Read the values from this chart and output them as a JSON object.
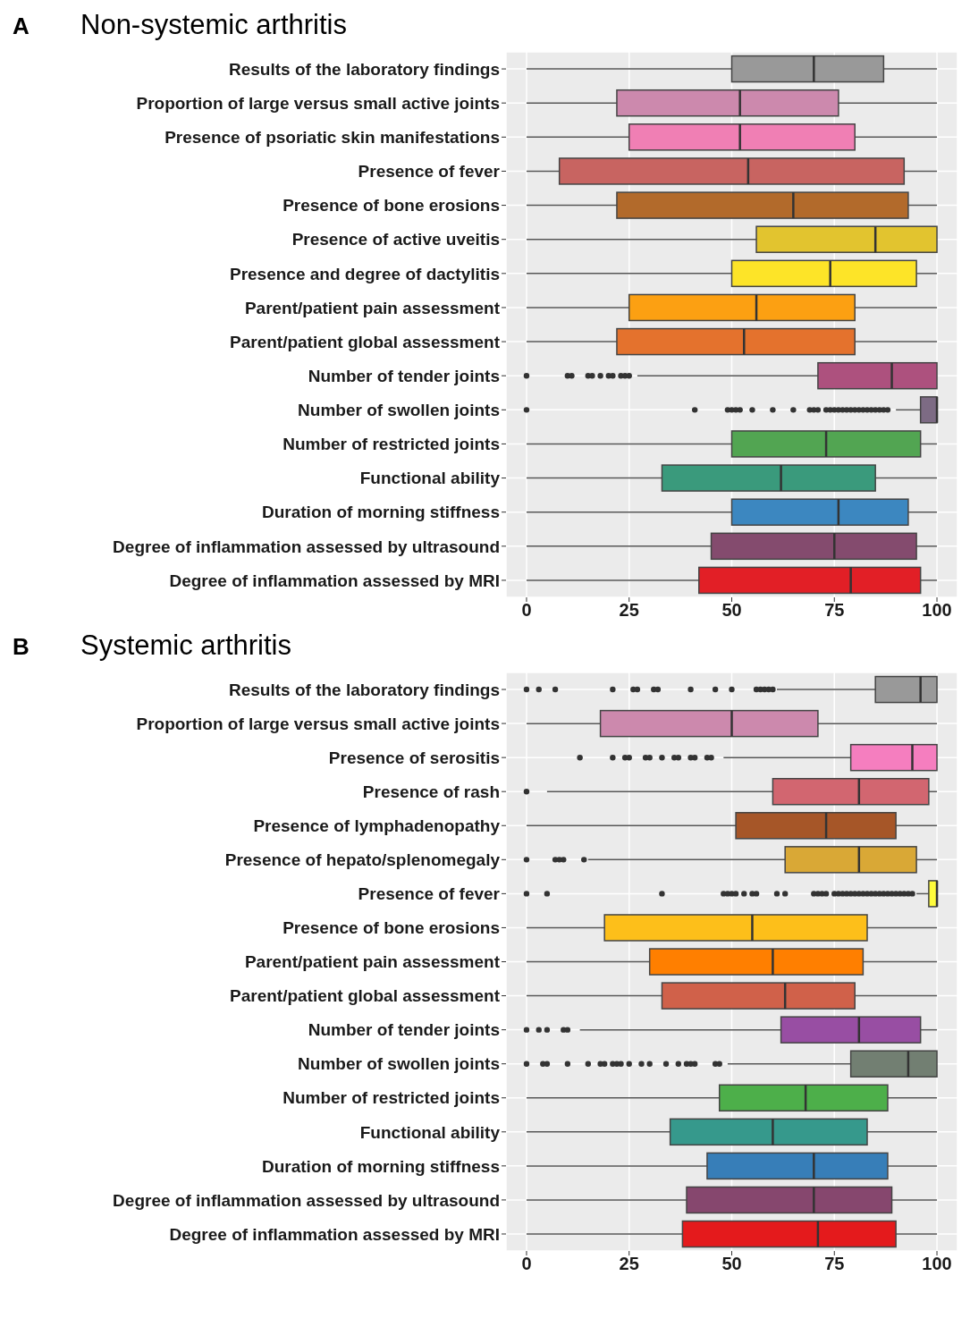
{
  "chart_data": [
    {
      "type": "box",
      "orientation": "horizontal",
      "title": "Non-systemic arthritis",
      "annotations": [
        "A"
      ],
      "grid": true,
      "xlim": [
        -5,
        105
      ],
      "xticks": [
        0,
        25,
        50,
        75,
        100
      ],
      "categories": [
        "Results of the laboratory findings",
        "Proportion of large versus small active joints",
        "Presence of psoriatic skin manifestations",
        "Presence of fever",
        "Presence of bone erosions",
        "Presence of active uveitis",
        "Presence and degree of dactylitis",
        "Parent/patient pain assessment",
        "Parent/patient global assessment",
        "Number of tender joints",
        "Number of swollen joints",
        "Number of restricted joints",
        "Functional ability",
        "Duration of morning stiffness",
        "Degree of inflammation assessed by ultrasound",
        "Degree of inflammation assessed by MRI"
      ],
      "colors": [
        "#999999",
        "#cc89ad",
        "#f07fb4",
        "#c86461",
        "#b26a2b",
        "#e2c42f",
        "#fde428",
        "#fca012",
        "#e4722d",
        "#ad517e",
        "#7d6b84",
        "#52a552",
        "#3a9a7c",
        "#3c87c0",
        "#844b6e",
        "#e21f26"
      ],
      "boxes": [
        {
          "low": 0,
          "q1": 50,
          "median": 70,
          "q3": 87,
          "high": 100
        },
        {
          "low": 0,
          "q1": 22,
          "median": 52,
          "q3": 76,
          "high": 100
        },
        {
          "low": 0,
          "q1": 25,
          "median": 52,
          "q3": 80,
          "high": 100
        },
        {
          "low": 0,
          "q1": 8,
          "median": 54,
          "q3": 92,
          "high": 100
        },
        {
          "low": 0,
          "q1": 22,
          "median": 65,
          "q3": 93,
          "high": 100
        },
        {
          "low": 0,
          "q1": 56,
          "median": 85,
          "q3": 100,
          "high": 100
        },
        {
          "low": 0,
          "q1": 50,
          "median": 74,
          "q3": 95,
          "high": 100
        },
        {
          "low": 0,
          "q1": 25,
          "median": 56,
          "q3": 80,
          "high": 100
        },
        {
          "low": 0,
          "q1": 22,
          "median": 53,
          "q3": 80,
          "high": 100
        },
        {
          "low": 27,
          "q1": 71,
          "median": 89,
          "q3": 100,
          "high": 100,
          "outliers": [
            0,
            10,
            11,
            15,
            16,
            18,
            20,
            21,
            23,
            24,
            25
          ]
        },
        {
          "low": 90,
          "q1": 96,
          "median": 100,
          "q3": 100,
          "high": 100,
          "outliers": [
            0,
            41,
            49,
            50,
            51,
            52,
            55,
            60,
            65,
            69,
            70,
            71,
            73,
            74,
            75,
            76,
            77,
            78,
            79,
            80,
            81,
            82,
            83,
            84,
            85,
            86,
            87,
            88
          ]
        },
        {
          "low": 0,
          "q1": 50,
          "median": 73,
          "q3": 96,
          "high": 100
        },
        {
          "low": 0,
          "q1": 33,
          "median": 62,
          "q3": 85,
          "high": 100
        },
        {
          "low": 0,
          "q1": 50,
          "median": 76,
          "q3": 93,
          "high": 100
        },
        {
          "low": 0,
          "q1": 45,
          "median": 75,
          "q3": 95,
          "high": 100
        },
        {
          "low": 0,
          "q1": 42,
          "median": 79,
          "q3": 96,
          "high": 100
        }
      ]
    },
    {
      "type": "box",
      "orientation": "horizontal",
      "title": "Systemic arthritis",
      "annotations": [
        "B"
      ],
      "grid": true,
      "xlim": [
        -5,
        105
      ],
      "xticks": [
        0,
        25,
        50,
        75,
        100
      ],
      "categories": [
        "Results of the laboratory findings",
        "Proportion of large versus small active joints",
        "Presence of serositis",
        "Presence of rash",
        "Presence of lymphadenopathy",
        "Presence of hepato/splenomegaly",
        "Presence of fever",
        "Presence of bone erosions",
        "Parent/patient pain assessment",
        "Parent/patient global assessment",
        "Number of tender joints",
        "Number of swollen joints",
        "Number of restricted joints",
        "Functional ability",
        "Duration of morning stiffness",
        "Degree of inflammation assessed by ultrasound",
        "Degree of inflammation assessed by MRI"
      ],
      "colors": [
        "#999999",
        "#cc89ad",
        "#f57ebf",
        "#d26670",
        "#a65628",
        "#d9a836",
        "#fffc3c",
        "#fdbf1a",
        "#ff7f00",
        "#d0614a",
        "#984ea3",
        "#727f72",
        "#4daf4a",
        "#36998c",
        "#377eb8",
        "#86476e",
        "#e41a1c"
      ],
      "boxes": [
        {
          "low": 61,
          "q1": 85,
          "median": 96,
          "q3": 100,
          "high": 100,
          "outliers": [
            0,
            3,
            7,
            21,
            26,
            27,
            31,
            32,
            40,
            46,
            50,
            56,
            57,
            58,
            59,
            60
          ]
        },
        {
          "low": 0,
          "q1": 18,
          "median": 50,
          "q3": 71,
          "high": 100
        },
        {
          "low": 48,
          "q1": 79,
          "median": 94,
          "q3": 100,
          "high": 100,
          "outliers": [
            13,
            21,
            24,
            25,
            29,
            30,
            33,
            36,
            37,
            40,
            41,
            44,
            45
          ]
        },
        {
          "low": 5,
          "q1": 60,
          "median": 81,
          "q3": 98,
          "high": 100,
          "outliers": [
            0
          ]
        },
        {
          "low": 0,
          "q1": 51,
          "median": 73,
          "q3": 90,
          "high": 100
        },
        {
          "low": 15,
          "q1": 63,
          "median": 81,
          "q3": 95,
          "high": 100,
          "outliers": [
            0,
            7,
            8,
            9,
            14
          ]
        },
        {
          "low": 95,
          "q1": 98,
          "median": 100,
          "q3": 100,
          "high": 100,
          "outliers": [
            0,
            5,
            33,
            48,
            49,
            50,
            51,
            53,
            55,
            56,
            61,
            63,
            70,
            71,
            72,
            73,
            75,
            76,
            77,
            78,
            79,
            80,
            81,
            82,
            83,
            84,
            85,
            86,
            87,
            88,
            89,
            90,
            91,
            92,
            93,
            94
          ]
        },
        {
          "low": 0,
          "q1": 19,
          "median": 55,
          "q3": 83,
          "high": 100
        },
        {
          "low": 0,
          "q1": 30,
          "median": 60,
          "q3": 82,
          "high": 100
        },
        {
          "low": 0,
          "q1": 33,
          "median": 63,
          "q3": 80,
          "high": 100
        },
        {
          "low": 13,
          "q1": 62,
          "median": 81,
          "q3": 96,
          "high": 100,
          "outliers": [
            0,
            3,
            5,
            9,
            10
          ]
        },
        {
          "low": 49,
          "q1": 79,
          "median": 93,
          "q3": 100,
          "high": 100,
          "outliers": [
            0,
            4,
            5,
            10,
            15,
            18,
            19,
            21,
            22,
            23,
            25,
            28,
            30,
            34,
            37,
            39,
            40,
            41,
            46,
            47
          ]
        },
        {
          "low": 0,
          "q1": 47,
          "median": 68,
          "q3": 88,
          "high": 100
        },
        {
          "low": 0,
          "q1": 35,
          "median": 60,
          "q3": 83,
          "high": 100
        },
        {
          "low": 0,
          "q1": 44,
          "median": 70,
          "q3": 88,
          "high": 100
        },
        {
          "low": 0,
          "q1": 39,
          "median": 70,
          "q3": 89,
          "high": 100
        },
        {
          "low": 0,
          "q1": 38,
          "median": 71,
          "q3": 90,
          "high": 100
        }
      ]
    }
  ]
}
